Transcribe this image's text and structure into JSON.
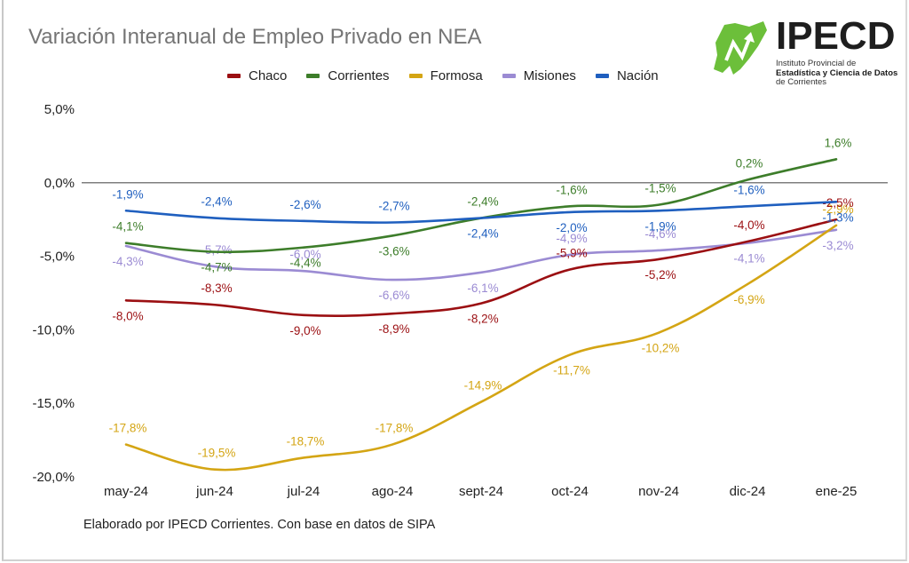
{
  "header": {
    "title": "Variación Interanual de Empleo Privado en NEA"
  },
  "logo": {
    "wordmark": "IPECD",
    "line1": "Instituto Provincial de",
    "line2": "Estadística y Ciencia de Datos",
    "line3": "de Corrientes",
    "brand_green": "#6cbf3a"
  },
  "footnote": "Elaborado por IPECD Corrientes. Con base en datos de SIPA",
  "chart_data": {
    "type": "line",
    "title": "Variación Interanual de Empleo Privado en NEA",
    "xlabel": "",
    "ylabel": "",
    "categories": [
      "may-24",
      "jun-24",
      "jul-24",
      "ago-24",
      "sept-24",
      "oct-24",
      "nov-24",
      "dic-24",
      "ene-25"
    ],
    "ylim": [
      -20,
      5
    ],
    "yticks": [
      5,
      0,
      -5,
      -10,
      -15,
      -20
    ],
    "ytick_labels": [
      "5,0%",
      "0,0%",
      "-5,0%",
      "-10,0%",
      "-15,0%",
      "-20,0%"
    ],
    "grid": false,
    "zero_line": true,
    "smooth": true,
    "legend_position": "top-center",
    "series": [
      {
        "name": "Chaco",
        "color": "#9b0f12",
        "values": [
          -8.0,
          -8.3,
          -9.0,
          -8.9,
          -8.2,
          -5.9,
          -5.2,
          -4.0,
          -2.5
        ],
        "labels": [
          "-8,0%",
          "-8,3%",
          "-9,0%",
          "-8,9%",
          "-8,2%",
          "-5,9%",
          "-5,2%",
          "-4,0%",
          "-2,5%"
        ]
      },
      {
        "name": "Corrientes",
        "color": "#3d7d2a",
        "values": [
          -4.1,
          -4.7,
          -4.4,
          -3.6,
          -2.4,
          -1.6,
          -1.5,
          0.2,
          1.6
        ],
        "labels": [
          "-4,1%",
          "-4,7%",
          "-4,4%",
          "-3,6%",
          "-2,4%",
          "-1,6%",
          "-1,5%",
          "0,2%",
          "1,6%"
        ]
      },
      {
        "name": "Formosa",
        "color": "#d4a514",
        "values": [
          -17.8,
          -19.5,
          -18.7,
          -17.8,
          -14.9,
          -11.7,
          -10.2,
          -6.9,
          -2.9
        ],
        "labels": [
          "-17,8%",
          "-19,5%",
          "-18,7%",
          "-17,8%",
          "-14,9%",
          "-11,7%",
          "-10,2%",
          "-6,9%",
          "-2,9%"
        ]
      },
      {
        "name": "Misiones",
        "color": "#9b8bd3",
        "values": [
          -4.3,
          -5.7,
          -6.0,
          -6.6,
          -6.1,
          -4.9,
          -4.6,
          -4.1,
          -3.2
        ],
        "labels": [
          "-4,3%",
          "-5,7%",
          "-6,0%",
          "-6,6%",
          "-6,1%",
          "-4,9%",
          "-4,6%",
          "-4,1%",
          "-3,2%"
        ]
      },
      {
        "name": "Nación",
        "color": "#1f5fbf",
        "values": [
          -1.9,
          -2.4,
          -2.6,
          -2.7,
          -2.4,
          -2.0,
          -1.9,
          -1.6,
          -1.3
        ],
        "labels": [
          "-1,9%",
          "-2,4%",
          "-2,6%",
          "-2,7%",
          "-2,4%",
          "-2,0%",
          "-1,9%",
          "-1,6%",
          "-1,3%"
        ]
      }
    ]
  }
}
